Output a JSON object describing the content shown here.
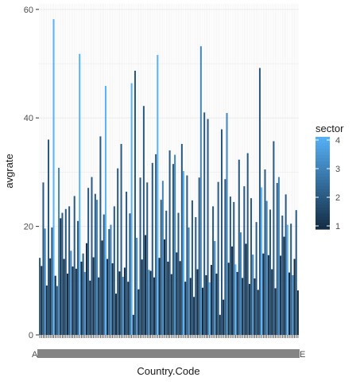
{
  "chart_data": {
    "type": "bar",
    "xlabel": "Country.Code",
    "ylabel": "avgrate",
    "ylim": [
      0,
      61
    ],
    "yticks": [
      0,
      20,
      40,
      60
    ],
    "x_tick_labels_visible": [
      "A",
      "E"
    ],
    "grid": true,
    "legend": {
      "title": "sector",
      "placement": "right",
      "type": "colorbar",
      "range": [
        1,
        4
      ],
      "ticks": [
        1,
        2,
        3,
        4
      ],
      "colors": {
        "low": "#132B43",
        "high": "#56B1F7"
      }
    },
    "series": [
      {
        "name": "sector",
        "values_by_sector": {
          "1": [
            12.7,
            9.1,
            14.1,
            10.9,
            21.5,
            14.0,
            11.3,
            12.6,
            12.2,
            13.5,
            16.9,
            10.0,
            14.3,
            10.6,
            17.4,
            14.0,
            13.2,
            7.6,
            11.7,
            12.4,
            9.8,
            3.7,
            8.4,
            13.9,
            18.4,
            11.8,
            10.6,
            14.2,
            17.6,
            13.5,
            11.2,
            15.2,
            13.6,
            9.8,
            10.5,
            7.0,
            12.1,
            8.7,
            11.0,
            12.9,
            11.3,
            3.7,
            6.5,
            13.3,
            16.3,
            11.6,
            10.5,
            16.8,
            9.4,
            10.4,
            8.3,
            15.0,
            14.7,
            12.1,
            8.6,
            14.6,
            18.1,
            11.5,
            14.0,
            8.2
          ],
          "2": [
            14.2,
            28.1,
            36.0,
            19.8,
            9.0,
            22.5,
            23.2,
            23.7,
            25.6,
            21.0,
            15.0,
            27.1,
            29.1,
            26.0,
            36.6,
            22.2,
            19.5,
            23.7,
            30.7,
            35.2,
            26.4,
            22.4,
            48.7,
            29.0,
            42.2,
            28.1,
            31.7,
            33.3,
            24.9,
            22.9,
            34.0,
            31.5,
            22.5,
            35.2,
            29.4,
            24.8,
            21.7,
            29.0,
            41.0,
            39.8,
            23.7,
            28.2,
            37.9,
            28.7,
            25.5,
            24.5,
            32.3,
            27.4,
            33.5,
            25.2,
            20.8,
            49.2,
            30.5,
            23.1,
            35.7,
            28.0,
            22.0,
            25.9,
            20.5,
            23.0
          ],
          "3": [
            19.6,
            30.8,
            15.5,
            11.6,
            24.9,
            20.3,
            10.7,
            17.9,
            12.0,
            28.4,
            33.2,
            19.8,
            53.2,
            17.3,
            40.9,
            18.9,
            14.8,
            24.7,
            29.1,
            11.0
          ],
          "4": [
            58.2,
            51.8,
            45.9,
            46.4,
            51.6,
            30.2,
            9.7,
            13.0,
            27.2,
            20.3
          ]
        }
      }
    ],
    "n_bars": 150
  }
}
